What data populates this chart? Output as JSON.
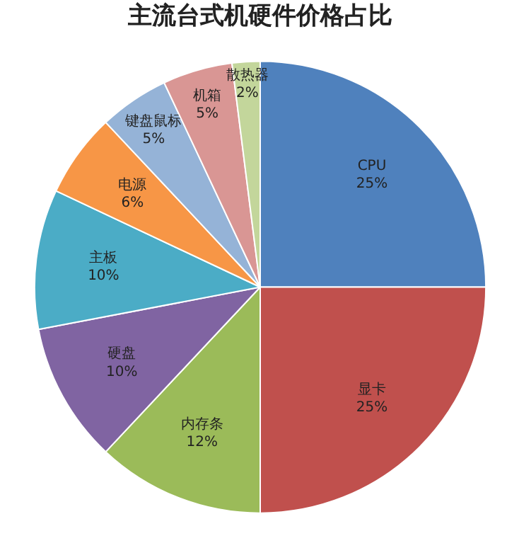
{
  "chart_data": {
    "type": "pie",
    "title": "主流台式机硬件价格占比",
    "categories": [
      "CPU",
      "显卡",
      "内存条",
      "硬盘",
      "主板",
      "电源",
      "键盘鼠标",
      "机箱",
      "散热器"
    ],
    "values": [
      25,
      25,
      12,
      10,
      10,
      6,
      5,
      5,
      2
    ],
    "value_labels": [
      "25%",
      "25%",
      "12%",
      "10%",
      "10%",
      "6%",
      "5%",
      "5%",
      "2%"
    ],
    "colors": [
      "#4f81bd",
      "#c0504d",
      "#9bbb59",
      "#8064a2",
      "#4bacc6",
      "#f79646",
      "#95b3d7",
      "#d99694",
      "#c3d69b"
    ]
  }
}
